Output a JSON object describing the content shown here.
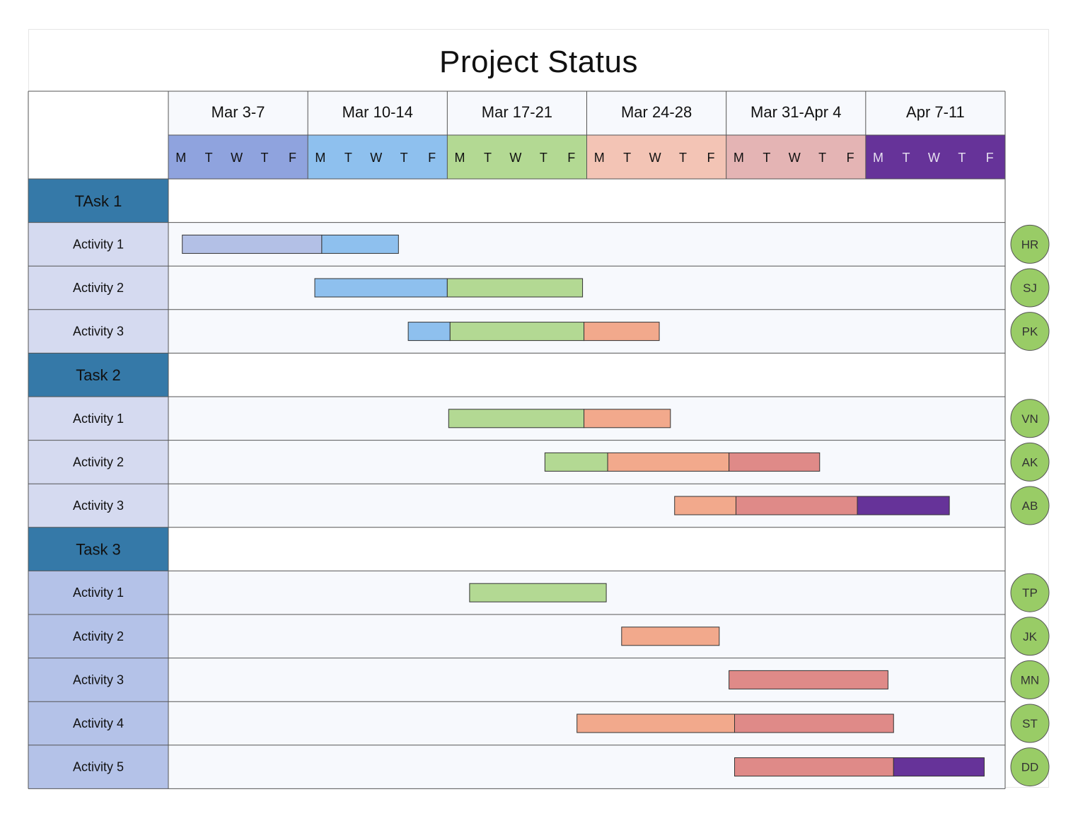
{
  "title": "Project Status",
  "chart_data": {
    "type": "gantt",
    "title": "Project Status",
    "weeks": [
      {
        "label": "Mar 3-7",
        "color": "#8fa3de"
      },
      {
        "label": "Mar 10-14",
        "color": "#8ec0ee"
      },
      {
        "label": "Mar 17-21",
        "color": "#b3d993"
      },
      {
        "label": "Mar 24-28",
        "color": "#f3c4b5"
      },
      {
        "label": "Mar 31-Apr 4",
        "color": "#e4b4b4"
      },
      {
        "label": "Apr 7-11",
        "color": "#663399"
      }
    ],
    "days": [
      "M",
      "T",
      "W",
      "T",
      "F"
    ],
    "rows": [
      {
        "kind": "task",
        "label": "TAsk 1"
      },
      {
        "kind": "activity",
        "label": "Activity 1",
        "owner": "HR",
        "segments": [
          {
            "start": 0.1,
            "end": 1.1,
            "color": "#b3c0e6"
          },
          {
            "start": 1.1,
            "end": 1.65,
            "color": "#8ec0ee"
          }
        ]
      },
      {
        "kind": "activity",
        "label": "Activity 2",
        "owner": "SJ",
        "segments": [
          {
            "start": 1.05,
            "end": 2.0,
            "color": "#8ec0ee"
          },
          {
            "start": 2.0,
            "end": 2.97,
            "color": "#b3d993"
          }
        ]
      },
      {
        "kind": "activity",
        "label": "Activity 3",
        "owner": "PK",
        "segments": [
          {
            "start": 1.72,
            "end": 2.02,
            "color": "#8ec0ee"
          },
          {
            "start": 2.02,
            "end": 2.98,
            "color": "#b3d993"
          },
          {
            "start": 2.98,
            "end": 3.52,
            "color": "#f2a98c"
          }
        ]
      },
      {
        "kind": "task",
        "label": "Task 2"
      },
      {
        "kind": "activity",
        "label": "Activity 1",
        "owner": "VN",
        "segments": [
          {
            "start": 2.01,
            "end": 2.98,
            "color": "#b3d993"
          },
          {
            "start": 2.98,
            "end": 3.6,
            "color": "#f2a98c"
          }
        ]
      },
      {
        "kind": "activity",
        "label": "Activity 2",
        "owner": "AK",
        "segments": [
          {
            "start": 2.7,
            "end": 3.15,
            "color": "#b3d993"
          },
          {
            "start": 3.15,
            "end": 4.02,
            "color": "#f2a98c"
          },
          {
            "start": 4.02,
            "end": 4.67,
            "color": "#df8a88"
          }
        ]
      },
      {
        "kind": "activity",
        "label": "Activity 3",
        "owner": "AB",
        "segments": [
          {
            "start": 3.63,
            "end": 4.07,
            "color": "#f2a98c"
          },
          {
            "start": 4.07,
            "end": 4.94,
            "color": "#df8a88"
          },
          {
            "start": 4.94,
            "end": 5.6,
            "color": "#663399"
          }
        ]
      },
      {
        "kind": "task",
        "label": "Task 3"
      },
      {
        "kind": "activity",
        "label": "Activity 1",
        "owner": "TP",
        "segments": [
          {
            "start": 2.16,
            "end": 3.14,
            "color": "#b3d993"
          }
        ]
      },
      {
        "kind": "activity",
        "label": "Activity 2",
        "owner": "JK",
        "segments": [
          {
            "start": 3.25,
            "end": 3.95,
            "color": "#f2a98c"
          }
        ]
      },
      {
        "kind": "activity",
        "label": "Activity 3",
        "owner": "MN",
        "segments": [
          {
            "start": 4.02,
            "end": 5.16,
            "color": "#df8a88"
          }
        ]
      },
      {
        "kind": "activity",
        "label": "Activity 4",
        "owner": "ST",
        "segments": [
          {
            "start": 2.93,
            "end": 4.06,
            "color": "#f2a98c"
          },
          {
            "start": 4.06,
            "end": 5.2,
            "color": "#df8a88"
          }
        ]
      },
      {
        "kind": "activity",
        "label": "Activity 5",
        "owner": "DD",
        "segments": [
          {
            "start": 4.06,
            "end": 5.2,
            "color": "#df8a88"
          },
          {
            "start": 5.2,
            "end": 5.85,
            "color": "#663399"
          }
        ]
      }
    ],
    "colors": {
      "task_label_bg": "#3579a8",
      "activity_label_bg_group1": "#d5daf0",
      "activity_label_bg_group2": "#b4c2e8",
      "row_bg": "#f7f9fd",
      "task_row_bg": "#ffffff",
      "owner_badge": "#99cc66",
      "grid_line": "#555555"
    }
  }
}
